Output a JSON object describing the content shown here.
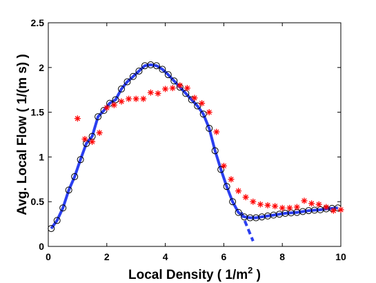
{
  "chart_data": {
    "type": "line",
    "xlabel_main": "Local Density ( 1/m",
    "xlabel_sup": "2",
    "xlabel_tail": " )",
    "ylabel": "Avg. Local Flow ( 1/(m s) )",
    "xlim": [
      0,
      10
    ],
    "ylim": [
      0,
      2.5
    ],
    "x_ticks": [
      0,
      2,
      4,
      6,
      8,
      10
    ],
    "y_ticks": [
      0,
      0.5,
      1,
      1.5,
      2,
      2.5
    ],
    "x_tick_labels": [
      "0",
      "2",
      "4",
      "6",
      "8",
      "10"
    ],
    "y_tick_labels": [
      "0",
      "0.5",
      "1",
      "1.5",
      "2",
      "2.5"
    ],
    "grid": false,
    "colors": {
      "fit": "#2b3ff0",
      "circles": "#000000",
      "stars": "#ff0000",
      "axes": "#000000"
    },
    "series": [
      {
        "style": "solid-line",
        "x": [
          0.1,
          0.3,
          0.5,
          0.7,
          0.9,
          1.1,
          1.3,
          1.5,
          1.7,
          1.9,
          2.1,
          2.3,
          2.5,
          2.7,
          2.9,
          3.1,
          3.3,
          3.5,
          3.7,
          3.9,
          4.1,
          4.3,
          4.5,
          4.7,
          4.9,
          5.1,
          5.3,
          5.5,
          5.7,
          5.9,
          6.1,
          6.3,
          6.5,
          6.7,
          6.9,
          7.1,
          7.3,
          7.5,
          7.7,
          7.9,
          8.1,
          8.3,
          8.5,
          8.7,
          8.9,
          9.1,
          9.3,
          9.5,
          9.7,
          9.9
        ],
        "y": [
          0.2,
          0.29,
          0.43,
          0.63,
          0.78,
          0.97,
          1.15,
          1.23,
          1.45,
          1.52,
          1.6,
          1.64,
          1.76,
          1.84,
          1.9,
          1.96,
          2.02,
          2.03,
          2.02,
          1.98,
          1.92,
          1.85,
          1.78,
          1.71,
          1.64,
          1.57,
          1.48,
          1.32,
          1.07,
          0.86,
          0.67,
          0.5,
          0.38,
          0.33,
          0.32,
          0.32,
          0.33,
          0.34,
          0.35,
          0.36,
          0.37,
          0.375,
          0.38,
          0.39,
          0.4,
          0.405,
          0.41,
          0.42,
          0.425,
          0.43
        ]
      },
      {
        "style": "dashed-line",
        "x": [
          6.6,
          7.0
        ],
        "y": [
          0.38,
          0.06
        ]
      },
      {
        "style": "circle-markers",
        "x": [
          0.1,
          0.3,
          0.5,
          0.7,
          0.9,
          1.1,
          1.3,
          1.5,
          1.7,
          1.9,
          2.1,
          2.3,
          2.5,
          2.7,
          2.9,
          3.1,
          3.3,
          3.5,
          3.7,
          3.9,
          4.1,
          4.3,
          4.5,
          4.7,
          4.9,
          5.1,
          5.3,
          5.5,
          5.7,
          5.9,
          6.1,
          6.3,
          6.5,
          6.7,
          6.9,
          7.1,
          7.3,
          7.5,
          7.7,
          7.9,
          8.1,
          8.3,
          8.5,
          8.7,
          8.9,
          9.1,
          9.3,
          9.5,
          9.7,
          9.9
        ],
        "y": [
          0.2,
          0.29,
          0.43,
          0.63,
          0.78,
          0.97,
          1.15,
          1.23,
          1.45,
          1.52,
          1.6,
          1.64,
          1.76,
          1.84,
          1.9,
          1.96,
          2.02,
          2.03,
          2.02,
          1.98,
          1.92,
          1.85,
          1.78,
          1.71,
          1.64,
          1.57,
          1.48,
          1.32,
          1.07,
          0.86,
          0.67,
          0.5,
          0.38,
          0.33,
          0.32,
          0.32,
          0.33,
          0.34,
          0.35,
          0.36,
          0.37,
          0.375,
          0.38,
          0.39,
          0.4,
          0.405,
          0.41,
          0.42,
          0.425,
          0.43
        ]
      },
      {
        "style": "star-markers",
        "x": [
          1.0,
          1.25,
          1.5,
          1.75,
          2.0,
          2.25,
          2.5,
          2.75,
          3.0,
          3.25,
          3.5,
          3.75,
          4.0,
          4.25,
          4.5,
          4.75,
          5.0,
          5.25,
          5.5,
          5.75,
          6.0,
          6.25,
          6.5,
          6.75,
          7.0,
          7.25,
          7.5,
          7.75,
          8.0,
          8.25,
          8.5,
          8.75,
          9.0,
          9.25,
          9.5,
          9.75,
          10.0
        ],
        "y": [
          1.43,
          1.2,
          1.17,
          1.27,
          1.55,
          1.58,
          1.62,
          1.65,
          1.65,
          1.65,
          1.72,
          1.71,
          1.76,
          1.77,
          1.8,
          1.77,
          1.66,
          1.6,
          1.5,
          1.28,
          0.9,
          0.75,
          0.62,
          0.55,
          0.5,
          0.47,
          0.46,
          0.45,
          0.43,
          0.43,
          0.44,
          0.51,
          0.48,
          0.47,
          0.44,
          0.4,
          0.41
        ]
      }
    ]
  }
}
